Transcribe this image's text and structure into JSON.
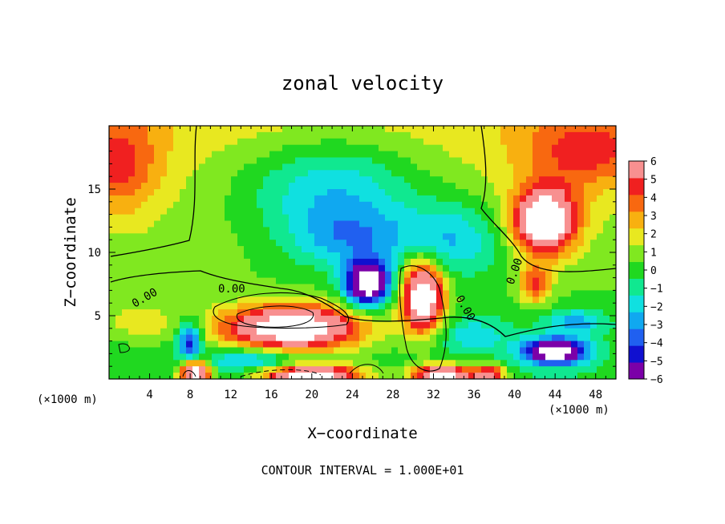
{
  "chart_data": {
    "type": "heatmap",
    "title": "zonal velocity",
    "xlabel": "X−coordinate",
    "ylabel": "Z−coordinate",
    "x_unit_label": "(×1000 m)",
    "y_unit_label": "(×1000 m)",
    "xlim": [
      0,
      50
    ],
    "ylim": [
      0,
      20
    ],
    "x_ticks": [
      4,
      8,
      12,
      16,
      20,
      24,
      28,
      32,
      36,
      40,
      44,
      48
    ],
    "y_ticks": [
      5,
      10,
      15
    ],
    "colorbar": {
      "ticks": [
        6,
        5,
        4,
        3,
        2,
        1,
        0,
        -1,
        -2,
        -3,
        -4,
        -5,
        -6
      ],
      "tick_labels": [
        "6",
        "5",
        "4",
        "3",
        "2",
        "1",
        "0",
        "−1",
        "−2",
        "−3",
        "−4",
        "−5",
        "−6"
      ],
      "range": [
        -6,
        6
      ],
      "colors": [
        "#7b00a8",
        "#1010d0",
        "#2060f0",
        "#10a8f0",
        "#10e0e0",
        "#10e890",
        "#20d820",
        "#80e820",
        "#e8e820",
        "#f8b010",
        "#f86810",
        "#f02020",
        "#f89090"
      ]
    },
    "contour_labels": [
      "0.00",
      "0.00",
      "0.00",
      "0.00"
    ],
    "contour_interval_text": "CONTOUR INTERVAL = 1.000E+01",
    "field_blobs": [
      {
        "x": 22,
        "z": 15,
        "sx": 9,
        "sz": 4,
        "v": -3.5
      },
      {
        "x": 24,
        "z": 11,
        "sx": 6,
        "sz": 2.5,
        "v": -3
      },
      {
        "x": 34,
        "z": 11,
        "sx": 5,
        "sz": 3,
        "v": -3
      },
      {
        "x": 43,
        "z": 12.5,
        "sx": 3,
        "sz": 2.5,
        "v": 9
      },
      {
        "x": 47,
        "z": 18,
        "sx": 6,
        "sz": 3,
        "v": 3
      },
      {
        "x": 1,
        "z": 17,
        "sx": 4,
        "sz": 4,
        "v": 3
      },
      {
        "x": 18,
        "z": 4,
        "sx": 7,
        "sz": 1.8,
        "v": 9
      },
      {
        "x": 25.5,
        "z": 7.5,
        "sx": 2.2,
        "sz": 1.8,
        "v": -9
      },
      {
        "x": 31,
        "z": 6.5,
        "sx": 2,
        "sz": 2.8,
        "v": 9
      },
      {
        "x": 44,
        "z": 2.2,
        "sx": 3,
        "sz": 1,
        "v": -9
      },
      {
        "x": 42,
        "z": 7.5,
        "sx": 1.5,
        "sz": 1.5,
        "v": 4
      },
      {
        "x": 8,
        "z": 3,
        "sx": 1.2,
        "sz": 1.5,
        "v": -5
      },
      {
        "x": 8.5,
        "z": 0.5,
        "sx": 1.5,
        "sz": 1,
        "v": 9
      },
      {
        "x": 20,
        "z": 0.3,
        "sx": 5,
        "sz": 0.8,
        "v": 9
      },
      {
        "x": 33,
        "z": 0.3,
        "sx": 3,
        "sz": 0.8,
        "v": 9
      },
      {
        "x": 37.5,
        "z": 0.3,
        "sx": 1.5,
        "sz": 0.8,
        "v": 6
      },
      {
        "x": 14,
        "z": 1.5,
        "sx": 5,
        "sz": 1,
        "v": -3
      },
      {
        "x": 36,
        "z": 3.5,
        "sx": 4,
        "sz": 1.5,
        "v": -2
      },
      {
        "x": 3,
        "z": 4.5,
        "sx": 3,
        "sz": 1.5,
        "v": 2
      },
      {
        "x": 46,
        "z": 4.5,
        "sx": 3,
        "sz": 1,
        "v": -3
      }
    ]
  }
}
